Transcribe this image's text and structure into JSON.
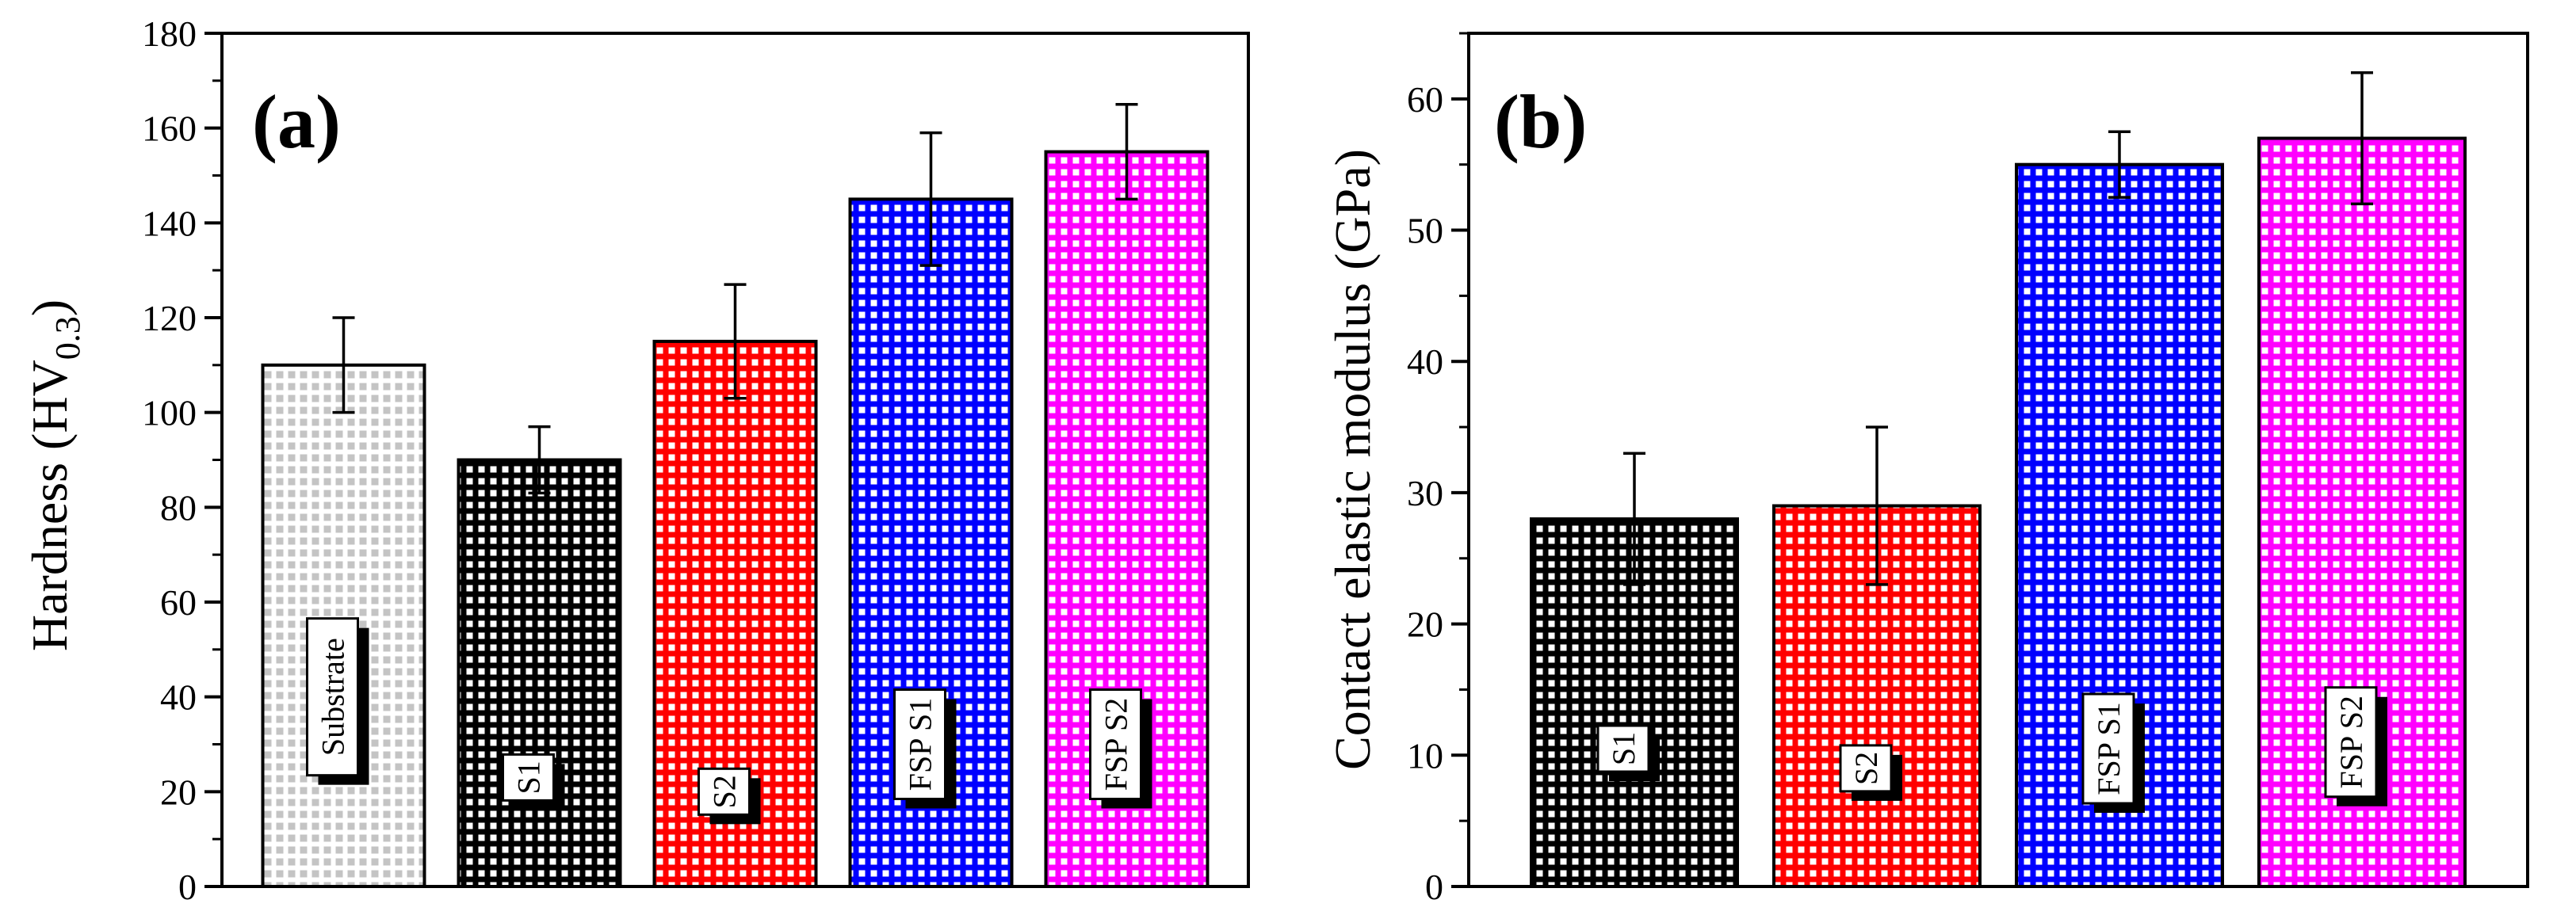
{
  "chart_data": [
    {
      "type": "bar",
      "panel_label": "(a)",
      "ylabel_main": "Hardness (HV",
      "ylabel_sub": "0.3",
      "ylabel_tail": ")",
      "xlabel": "",
      "ylim": [
        0,
        180
      ],
      "ytick_step": 20,
      "ytick_labels": [
        "0",
        "20",
        "40",
        "60",
        "80",
        "100",
        "120",
        "140",
        "160",
        "180"
      ],
      "categories": [
        "Substrate",
        "S1",
        "S2",
        "FSP S1",
        "FSP S2"
      ],
      "values": [
        110,
        90,
        115,
        145,
        155
      ],
      "errors": [
        10,
        7,
        12,
        14,
        10
      ],
      "colors": [
        "#c4c4c4",
        "#000000",
        "#ff0000",
        "#0000ff",
        "#ff00ff"
      ],
      "label_y": [
        40,
        23,
        20,
        30,
        30
      ]
    },
    {
      "type": "bar",
      "panel_label": "(b)",
      "ylabel_main": "Contact elastic modulus (GPa)",
      "xlabel": "",
      "ylim": [
        0,
        65
      ],
      "ytick_step": 10,
      "ytick_labels": [
        "0",
        "10",
        "20",
        "30",
        "40",
        "50",
        "60"
      ],
      "categories": [
        "S1",
        "S2",
        "FSP S1",
        "FSP S2"
      ],
      "values": [
        28,
        29,
        55,
        57
      ],
      "errors": [
        5,
        6,
        2.5,
        5
      ],
      "colors": [
        "#000000",
        "#ff0000",
        "#0000ff",
        "#ff00ff"
      ],
      "label_y": [
        10.5,
        9,
        10.5,
        11
      ]
    }
  ]
}
